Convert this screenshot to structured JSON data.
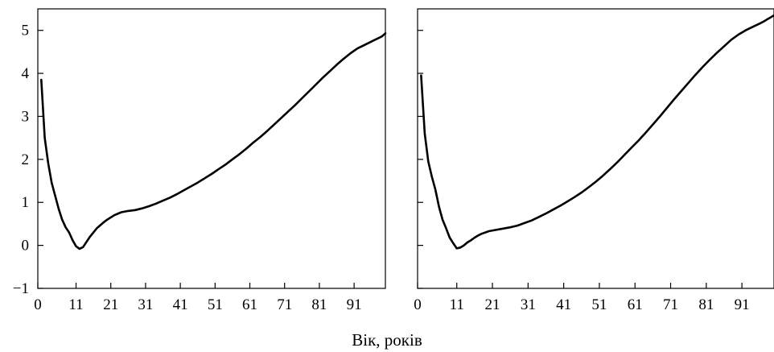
{
  "chart_data": [
    {
      "type": "line",
      "xlabel": "",
      "ylabel": "",
      "xlim": [
        0,
        100
      ],
      "ylim": [
        -1,
        5.5
      ],
      "xticks": [
        0,
        11,
        21,
        31,
        41,
        51,
        61,
        71,
        81,
        91
      ],
      "yticks": [
        -1,
        0,
        1,
        2,
        3,
        4,
        5
      ],
      "grid": false,
      "series": [
        {
          "x": [
            1,
            2,
            3,
            4,
            5,
            6,
            7,
            8,
            9,
            10,
            11,
            12,
            13,
            14,
            15,
            16,
            17,
            18,
            19,
            20,
            22,
            24,
            26,
            28,
            30,
            32,
            34,
            36,
            38,
            40,
            42,
            44,
            46,
            48,
            50,
            52,
            54,
            56,
            58,
            60,
            62,
            64,
            66,
            68,
            70,
            72,
            74,
            76,
            78,
            80,
            82,
            84,
            86,
            88,
            90,
            92,
            94,
            96,
            97,
            98,
            99,
            100
          ],
          "y": [
            3.85,
            2.5,
            1.9,
            1.45,
            1.15,
            0.85,
            0.6,
            0.42,
            0.3,
            0.12,
            -0.02,
            -0.08,
            -0.04,
            0.08,
            0.2,
            0.3,
            0.4,
            0.47,
            0.54,
            0.6,
            0.7,
            0.77,
            0.8,
            0.82,
            0.86,
            0.91,
            0.97,
            1.04,
            1.11,
            1.19,
            1.28,
            1.37,
            1.46,
            1.56,
            1.66,
            1.77,
            1.88,
            2.0,
            2.12,
            2.25,
            2.39,
            2.52,
            2.66,
            2.81,
            2.96,
            3.11,
            3.26,
            3.42,
            3.58,
            3.74,
            3.9,
            4.05,
            4.2,
            4.34,
            4.47,
            4.58,
            4.66,
            4.74,
            4.78,
            4.82,
            4.86,
            4.93
          ]
        }
      ]
    },
    {
      "type": "line",
      "xlabel": "Вік, років",
      "ylabel": "",
      "xlim": [
        0,
        100
      ],
      "ylim": [
        -1,
        5.5
      ],
      "xticks": [
        0,
        11,
        21,
        31,
        41,
        51,
        61,
        71,
        81,
        91
      ],
      "yticks": [
        -1,
        0,
        1,
        2,
        3,
        4,
        5
      ],
      "grid": false,
      "series": [
        {
          "x": [
            1,
            2,
            3,
            4,
            5,
            6,
            7,
            8,
            9,
            10,
            11,
            12,
            13,
            14,
            15,
            16,
            17,
            18,
            19,
            20,
            22,
            24,
            26,
            28,
            30,
            32,
            34,
            36,
            38,
            40,
            42,
            44,
            46,
            48,
            50,
            52,
            54,
            56,
            58,
            60,
            62,
            64,
            66,
            68,
            70,
            72,
            74,
            76,
            78,
            80,
            82,
            84,
            86,
            88,
            90,
            92,
            94,
            96,
            97,
            98,
            99,
            100
          ],
          "y": [
            3.95,
            2.6,
            1.95,
            1.6,
            1.3,
            0.9,
            0.6,
            0.4,
            0.18,
            0.05,
            -0.07,
            -0.05,
            0.0,
            0.07,
            0.12,
            0.18,
            0.23,
            0.27,
            0.3,
            0.33,
            0.36,
            0.39,
            0.42,
            0.46,
            0.52,
            0.58,
            0.66,
            0.74,
            0.83,
            0.92,
            1.02,
            1.12,
            1.23,
            1.35,
            1.48,
            1.62,
            1.77,
            1.93,
            2.1,
            2.27,
            2.44,
            2.62,
            2.81,
            3.0,
            3.2,
            3.4,
            3.59,
            3.78,
            3.97,
            4.15,
            4.32,
            4.48,
            4.63,
            4.78,
            4.9,
            5.0,
            5.08,
            5.16,
            5.2,
            5.25,
            5.3,
            5.35
          ]
        }
      ]
    }
  ]
}
